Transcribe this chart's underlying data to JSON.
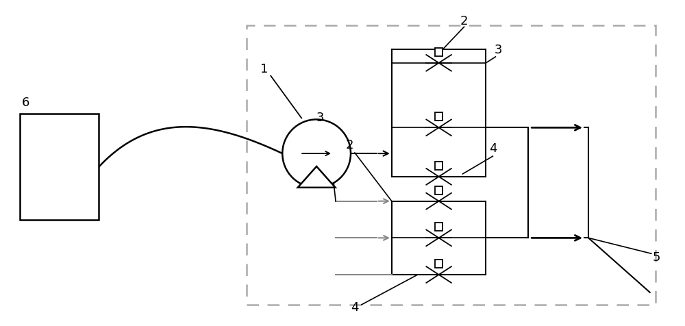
{
  "bg": "#ffffff",
  "lc": "#000000",
  "gc": "#888888",
  "dc": "#aaaaaa"
}
